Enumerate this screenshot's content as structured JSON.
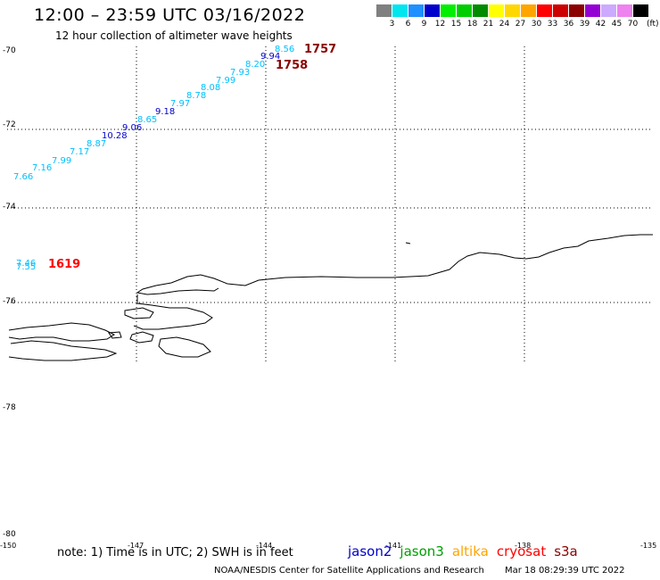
{
  "header": {
    "title": "12:00 – 23:59 UTC 03/16/2022",
    "subtitle": "12 hour collection of altimeter wave heights"
  },
  "colorbar": {
    "unit": "(ft)",
    "bins": [
      {
        "label": "3",
        "color": "#808080"
      },
      {
        "label": "6",
        "color": "#00e5ee"
      },
      {
        "label": "9",
        "color": "#1e90ff"
      },
      {
        "label": "12",
        "color": "#0000cd"
      },
      {
        "label": "15",
        "color": "#00ee00"
      },
      {
        "label": "18",
        "color": "#00cd00"
      },
      {
        "label": "21",
        "color": "#008b00"
      },
      {
        "label": "24",
        "color": "#ffff00"
      },
      {
        "label": "27",
        "color": "#ffd700"
      },
      {
        "label": "30",
        "color": "#ffa500"
      },
      {
        "label": "33",
        "color": "#ff0000"
      },
      {
        "label": "36",
        "color": "#cd0000"
      },
      {
        "label": "39",
        "color": "#8b0000"
      },
      {
        "label": "42",
        "color": "#9400d3"
      },
      {
        "label": "45",
        "color": "#ccaaff"
      },
      {
        "label": "70",
        "color": "#ee82ee"
      },
      {
        "label": "",
        "color": "#000000"
      }
    ]
  },
  "axes": {
    "lat_labels": [
      "-70",
      "-72",
      "-74",
      "-76",
      "-78",
      "-80"
    ],
    "lon_labels": [
      "-150",
      "-147",
      "-144",
      "-141",
      "-138",
      "-135"
    ]
  },
  "swh_points": [
    {
      "value": "7.66",
      "color": "#00bfff"
    },
    {
      "value": "7.16",
      "color": "#00bfff"
    },
    {
      "value": "7.99",
      "color": "#00bfff"
    },
    {
      "value": "7.17",
      "color": "#00bfff"
    },
    {
      "value": "8.87",
      "color": "#00bfff"
    },
    {
      "value": "10.28",
      "color": "#0000cd"
    },
    {
      "value": "9.06",
      "color": "#0000cd"
    },
    {
      "value": "8.65",
      "color": "#00bfff"
    },
    {
      "value": "9.18",
      "color": "#0000cd"
    },
    {
      "value": "7.97",
      "color": "#00bfff"
    },
    {
      "value": "8.78",
      "color": "#00bfff"
    },
    {
      "value": "8.08",
      "color": "#00bfff"
    },
    {
      "value": "7.99",
      "color": "#00bfff"
    },
    {
      "value": "7.93",
      "color": "#00bfff"
    },
    {
      "value": "8.20",
      "color": "#00bfff"
    },
    {
      "value": "9.94",
      "color": "#0000cd"
    },
    {
      "value": "8.56",
      "color": "#00bfff"
    },
    {
      "value": "7.46",
      "color": "#00bfff"
    },
    {
      "value": "7.55",
      "color": "#00bfff"
    }
  ],
  "time_labels": [
    {
      "text": "1757",
      "color": "#8b0000"
    },
    {
      "text": "1758",
      "color": "#8b0000"
    },
    {
      "text": "1619",
      "color": "#ff0000"
    }
  ],
  "footer": {
    "note": "note: 1) Time is in UTC; 2) SWH is in feet",
    "satellites": [
      {
        "name": "jason2",
        "color": "#0000cd"
      },
      {
        "name": "jason3",
        "color": "#00a000"
      },
      {
        "name": "altika",
        "color": "#ffa500"
      },
      {
        "name": "cryosat",
        "color": "#ff0000"
      },
      {
        "name": "s3a",
        "color": "#8b0000"
      }
    ],
    "credit": "NOAA/NESDIS Center for Satellite Applications and Research",
    "timestamp": "Mar 18 08:29:39 UTC 2022"
  }
}
